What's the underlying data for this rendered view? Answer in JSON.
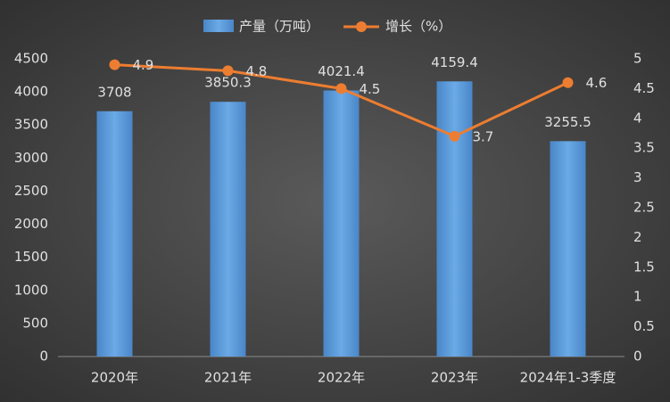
{
  "chart_data": {
    "type": "bar",
    "categories": [
      "2020年",
      "2021年",
      "2022年",
      "2023年",
      "2024年1-3季度"
    ],
    "series": [
      {
        "name": "产量（万吨）",
        "type": "bar",
        "color": "#5b9bd5",
        "values": [
          3708,
          3850.3,
          4021.4,
          4159.4,
          3255.5
        ]
      },
      {
        "name": "增长（%）",
        "type": "line",
        "axis": "y2",
        "color": "#ed7d31",
        "values": [
          4.9,
          4.8,
          4.5,
          3.7,
          4.6
        ]
      }
    ],
    "ylim": [
      0,
      4500
    ],
    "yticks": [
      0,
      500,
      1000,
      1500,
      2000,
      2500,
      3000,
      3500,
      4000,
      4500
    ],
    "y2lim": [
      0,
      5
    ],
    "y2ticks": [
      0,
      0.5,
      1,
      1.5,
      2,
      2.5,
      3,
      3.5,
      4,
      4.5,
      5
    ],
    "legend": "top"
  }
}
